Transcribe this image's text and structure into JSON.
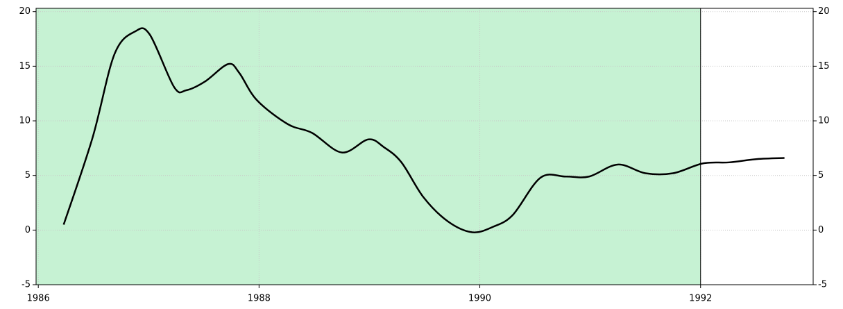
{
  "chart_data": {
    "type": "line",
    "x": [
      1986.23,
      1986.49,
      1986.69,
      1986.88,
      1987.01,
      1987.23,
      1987.34,
      1987.51,
      1987.72,
      1987.82,
      1987.98,
      1988.26,
      1988.48,
      1988.75,
      1988.99,
      1989.13,
      1989.29,
      1989.49,
      1989.71,
      1989.93,
      1990.12,
      1990.3,
      1990.55,
      1990.78,
      1990.99,
      1991.25,
      1991.5,
      1991.75,
      1992.02,
      1992.26,
      1992.51,
      1992.76
    ],
    "series": [
      {
        "color": "#000000",
        "values": [
          0.5,
          8.4,
          16.1,
          18.2,
          17.9,
          13.1,
          12.8,
          13.6,
          15.2,
          14.4,
          11.9,
          9.7,
          8.9,
          7.1,
          8.3,
          7.6,
          6.2,
          3.0,
          0.8,
          -0.2,
          0.3,
          1.4,
          4.8,
          4.9,
          4.9,
          6.0,
          5.2,
          5.2,
          6.1,
          6.2,
          6.5,
          6.6
        ]
      }
    ],
    "xlim": [
      1985.98,
      1993.02
    ],
    "xticks": [
      1986,
      1988,
      1990,
      1992
    ],
    "ylim": [
      -5,
      20.3
    ],
    "yticks": [
      -5,
      0,
      5,
      10,
      15,
      20
    ],
    "y2lim": [
      -5,
      20.3
    ],
    "y2ticks": [
      -5,
      0,
      5,
      10,
      15,
      20
    ],
    "shaded_region": {
      "x": [
        1985.98,
        1992
      ],
      "color": "#c6f2d3"
    },
    "grid": true
  }
}
